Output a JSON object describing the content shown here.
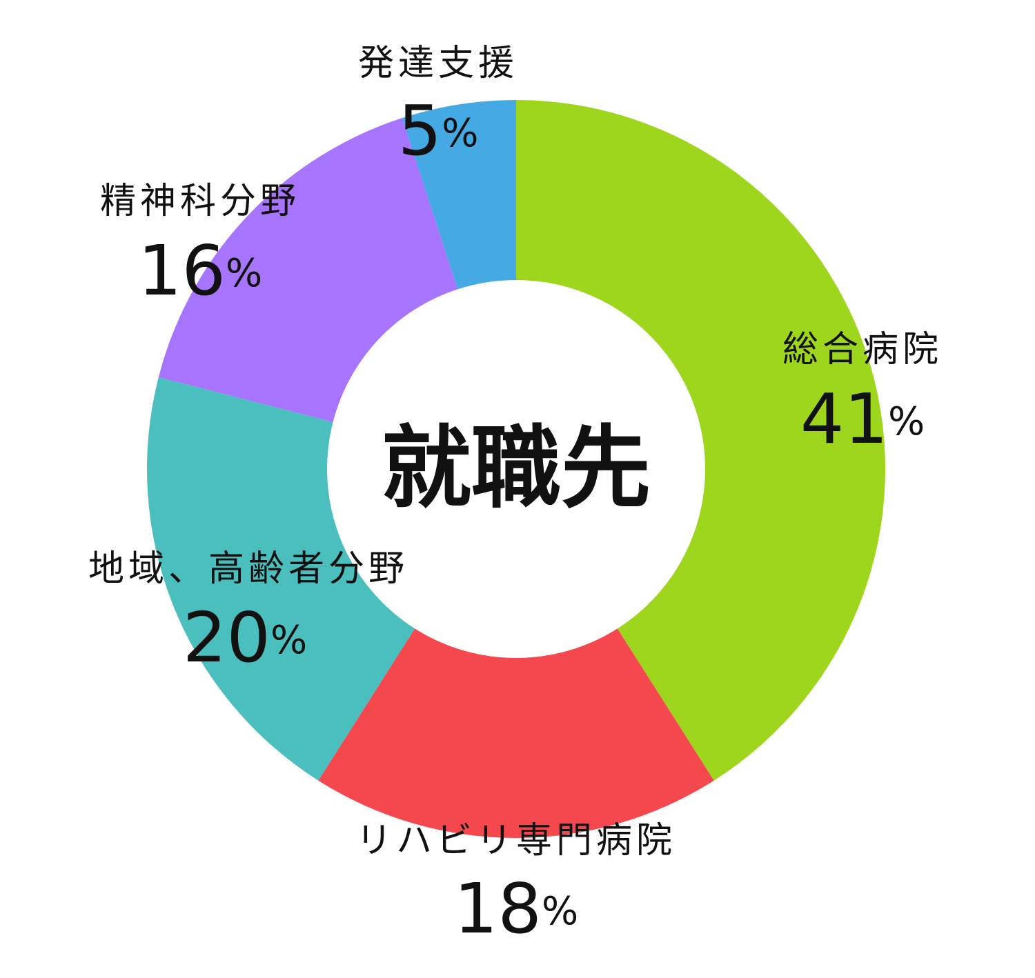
{
  "chart_data": {
    "type": "donut",
    "title": "就職先",
    "categories": [
      "総合病院",
      "リハビリ専門病院",
      "地域、高齢者分野",
      "精神科分野",
      "発達支援"
    ],
    "values": [
      41,
      18,
      20,
      16,
      5
    ],
    "value_labels": [
      "41%",
      "18%",
      "20%",
      "16%",
      "5%"
    ],
    "colors": [
      "#9dd61c",
      "#f5484e",
      "#4bbfbd",
      "#a775fd",
      "#45a9e4"
    ]
  }
}
